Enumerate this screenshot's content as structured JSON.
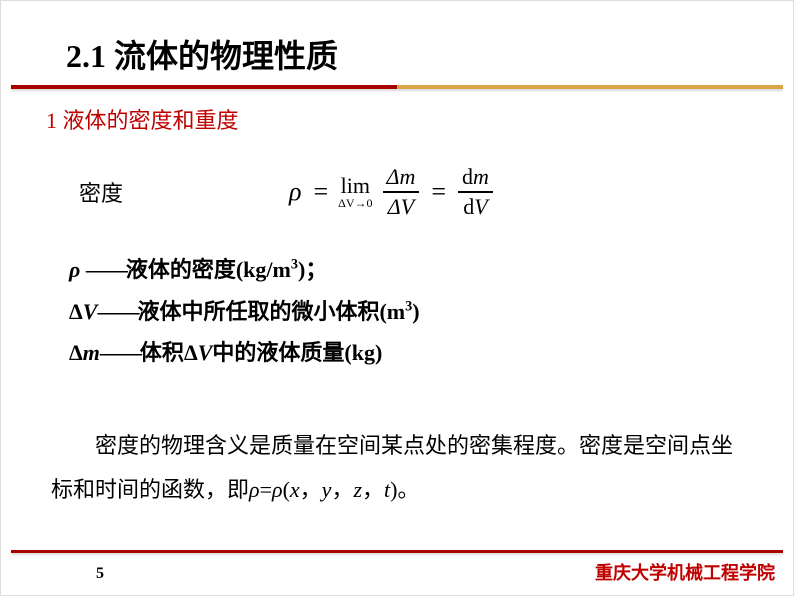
{
  "title": "2.1 流体的物理性质",
  "subtitle": "1 液体的密度和重度",
  "density_label": "密度",
  "formula": {
    "rho": "ρ",
    "eq1": "=",
    "lim_top": "lim",
    "lim_bot": "ΔV→0",
    "frac1_num": "Δm",
    "frac1_den": "ΔV",
    "eq2": "=",
    "frac2_num": "dm",
    "frac2_den": "dV",
    "d_style": "upright"
  },
  "definitions": [
    {
      "symbol": "ρ ",
      "dash": "——",
      "text": "液体的密度(kg/m",
      "sup": "3",
      "tail": ")；"
    },
    {
      "symbol": "ΔV",
      "dash": "——",
      "text": "液体中所任取的微小体积(m",
      "sup": "3",
      "tail": ")"
    },
    {
      "symbol": "Δm",
      "dash": "——",
      "text_pre": "体积",
      "mid_sym": "ΔV",
      "text": "中的液体质量(kg)",
      "sup": "",
      "tail": ""
    }
  ],
  "explanation": {
    "pre": "密度的物理含义是质量在空间某点处的密集程度。密度是空间点坐标和时间的函数，即",
    "rho1": "ρ",
    "eq": "=",
    "rho2": "ρ",
    "open": "(",
    "x": "x",
    "c1": "，",
    "y": "y",
    "c2": "，",
    "z": "z",
    "c3": "，",
    "t": "t",
    "close": ")",
    "end": "。"
  },
  "page_number": "5",
  "footer": "重庆大学机械工程学院",
  "colors": {
    "accent": "#a80000",
    "accent2": "#d9a44a",
    "subtitle": "#c00000",
    "text": "#000000",
    "background": "#ffffff"
  }
}
